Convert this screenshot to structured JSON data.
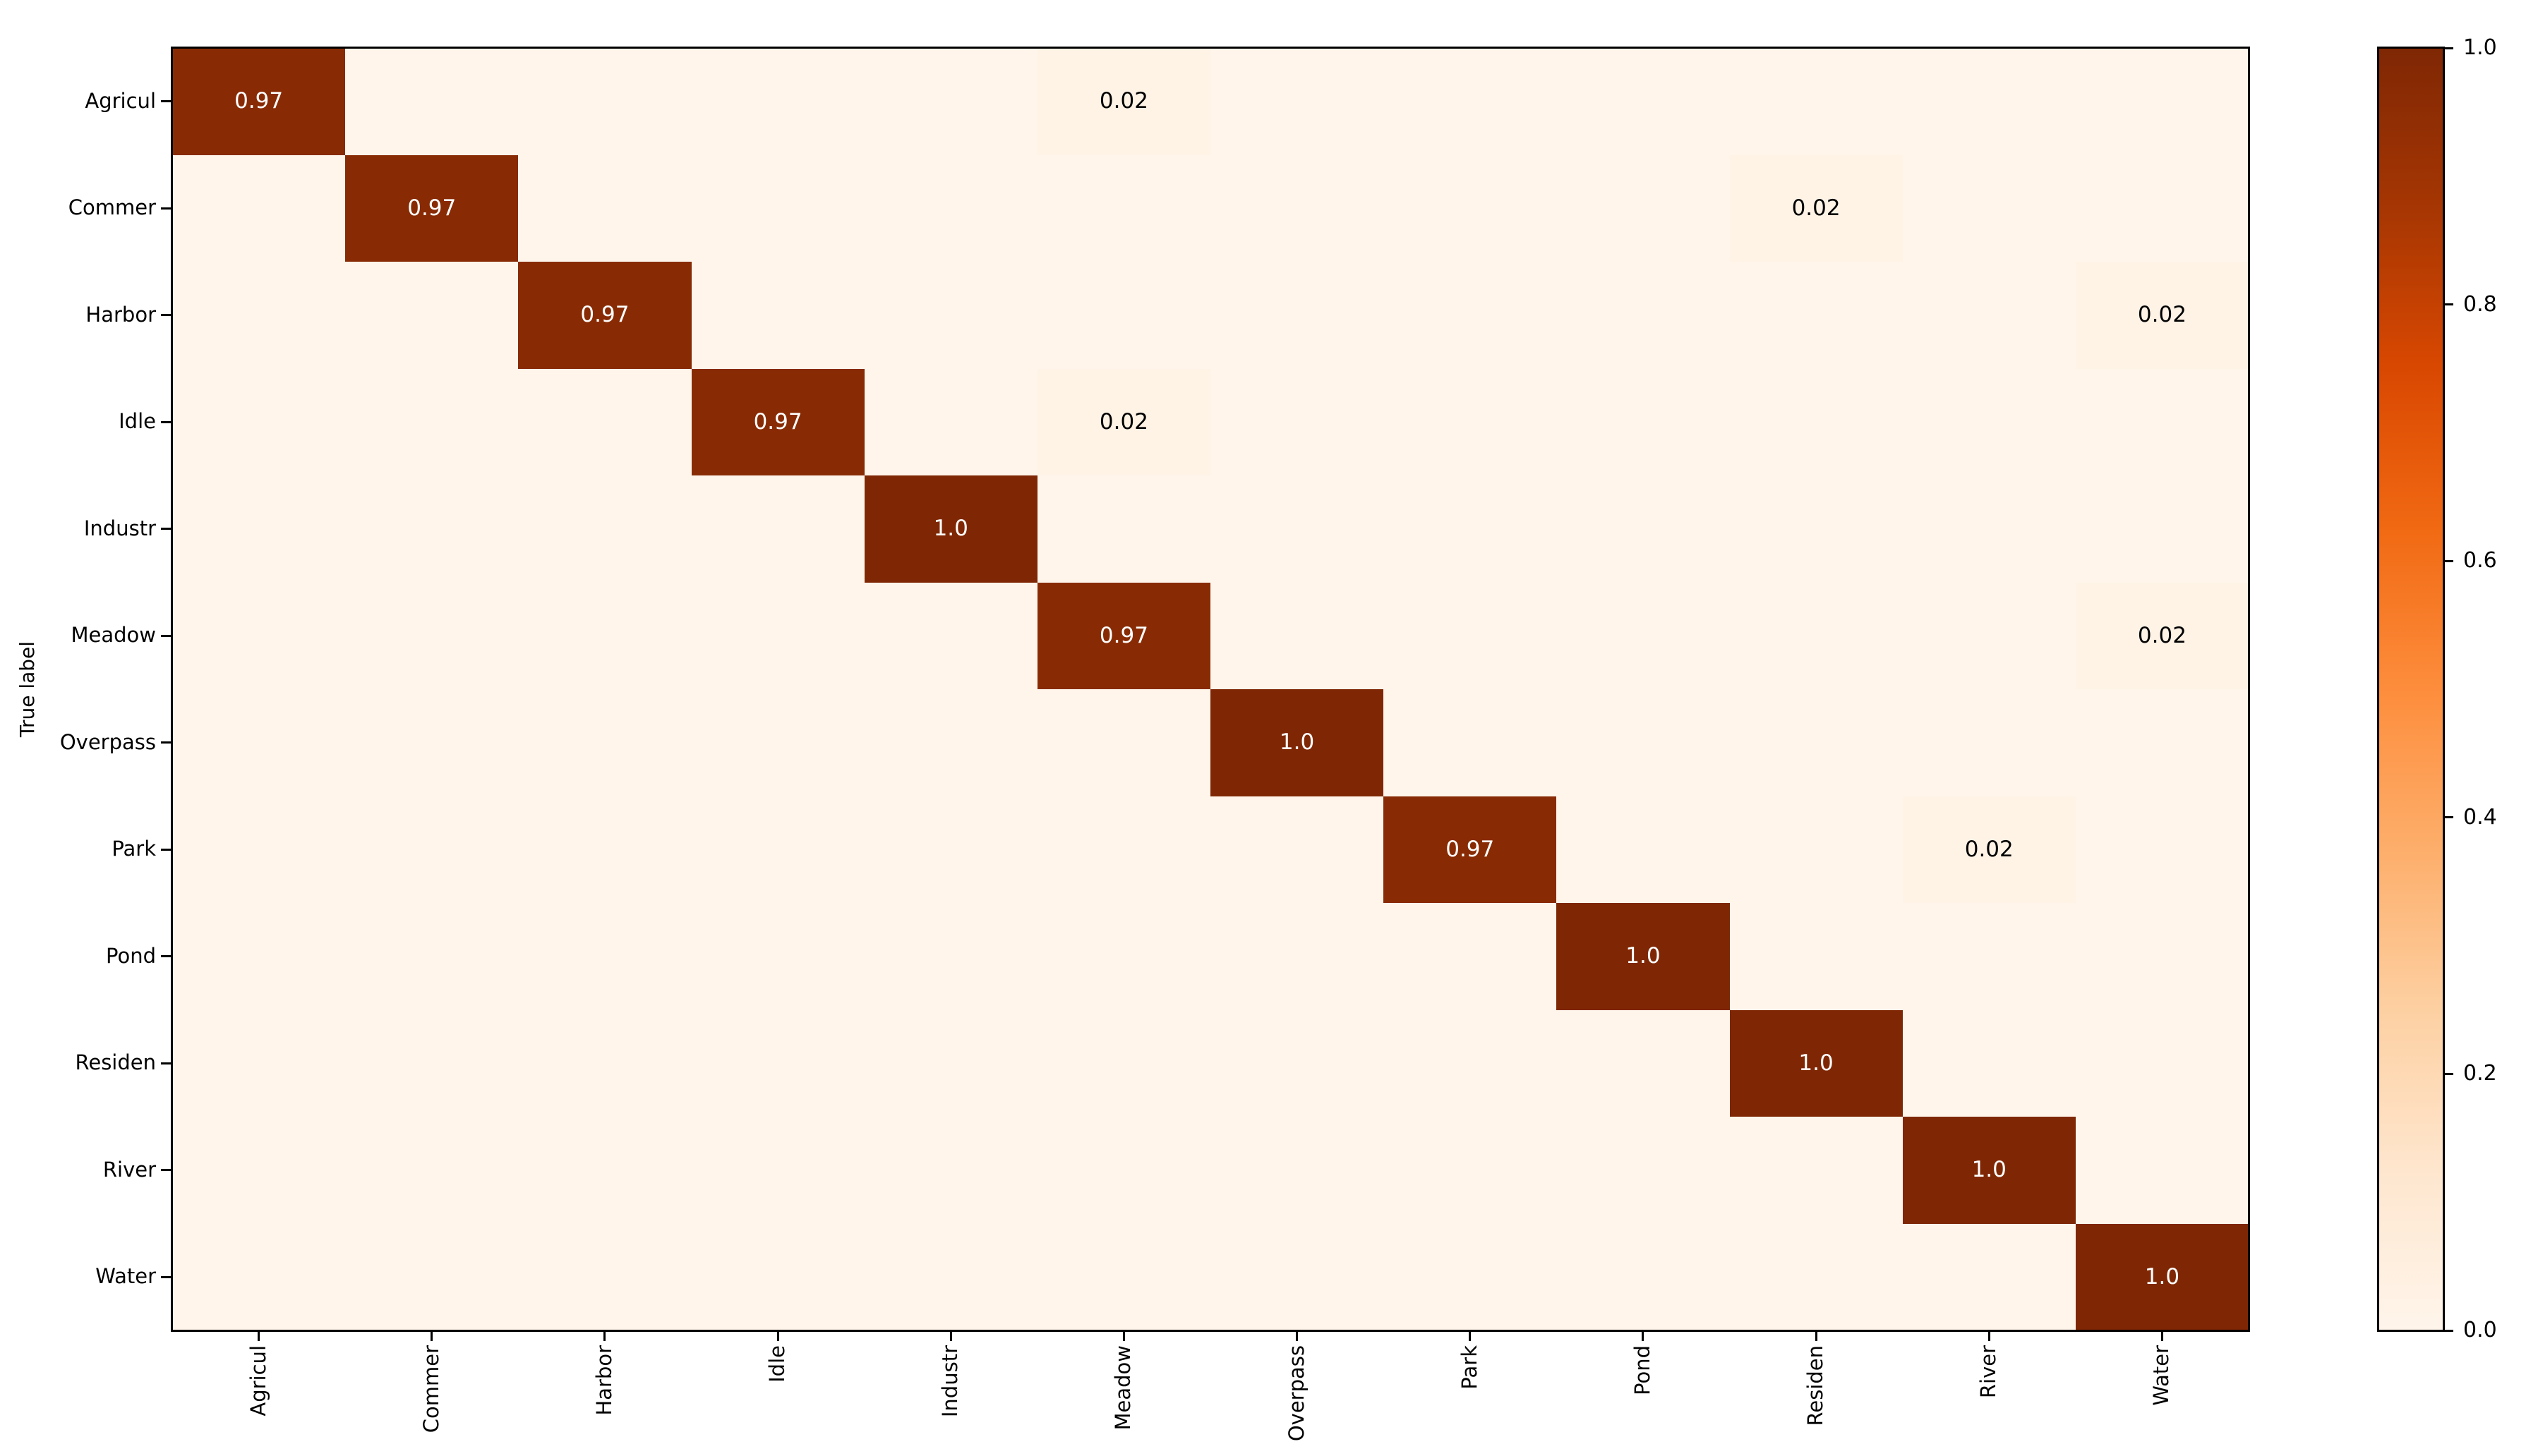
{
  "chart_data": {
    "type": "heatmap",
    "title": "",
    "xlabel": "",
    "ylabel": "True label",
    "x_tick_labels": [
      "Agricul",
      "Commer",
      "Harbor",
      "Idle",
      "Industr",
      "Meadow",
      "Overpass",
      "Park",
      "Pond",
      "Residen",
      "River",
      "Water"
    ],
    "y_tick_labels": [
      "Agricul",
      "Commer",
      "Harbor",
      "Idle",
      "Industr",
      "Meadow",
      "Overpass",
      "Park",
      "Pond",
      "Residen",
      "River",
      "Water"
    ],
    "matrix": [
      [
        0.97,
        0,
        0,
        0,
        0,
        0.02,
        0,
        0,
        0,
        0,
        0,
        0
      ],
      [
        0,
        0.97,
        0,
        0,
        0,
        0,
        0,
        0,
        0,
        0.02,
        0,
        0
      ],
      [
        0,
        0,
        0.97,
        0,
        0,
        0,
        0,
        0,
        0,
        0,
        0,
        0.02
      ],
      [
        0,
        0,
        0,
        0.97,
        0,
        0.02,
        0,
        0,
        0,
        0,
        0,
        0
      ],
      [
        0,
        0,
        0,
        0,
        1.0,
        0,
        0,
        0,
        0,
        0,
        0,
        0
      ],
      [
        0,
        0,
        0,
        0,
        0,
        0.97,
        0,
        0,
        0,
        0,
        0,
        0.02
      ],
      [
        0,
        0,
        0,
        0,
        0,
        0,
        1.0,
        0,
        0,
        0,
        0,
        0
      ],
      [
        0,
        0,
        0,
        0,
        0,
        0,
        0,
        0.97,
        0,
        0,
        0.02,
        0
      ],
      [
        0,
        0,
        0,
        0,
        0,
        0,
        0,
        0,
        1.0,
        0,
        0,
        0
      ],
      [
        0,
        0,
        0,
        0,
        0,
        0,
        0,
        0,
        0,
        1.0,
        0,
        0
      ],
      [
        0,
        0,
        0,
        0,
        0,
        0,
        0,
        0,
        0,
        0,
        1.0,
        0
      ],
      [
        0,
        0,
        0,
        0,
        0,
        0,
        0,
        0,
        0,
        0,
        0,
        1.0
      ]
    ],
    "cell_labels_visible": [
      "0.97",
      "1.0",
      "0.02"
    ],
    "vmin": 0.0,
    "vmax": 1.0,
    "grid": false,
    "legend_position": "right-colorbar",
    "colorbar": {
      "tick_labels": [
        "1.0",
        "0.8",
        "0.6",
        "0.4",
        "0.2",
        "0.0"
      ],
      "tick_values": [
        1.0,
        0.8,
        0.6,
        0.4,
        0.2,
        0.0
      ]
    },
    "colormap": {
      "name": "Oranges",
      "anchors": [
        {
          "pos": 0.0,
          "color": "#fff5eb"
        },
        {
          "pos": 0.125,
          "color": "#fee6ce"
        },
        {
          "pos": 0.25,
          "color": "#fdd0a2"
        },
        {
          "pos": 0.375,
          "color": "#fdae6b"
        },
        {
          "pos": 0.5,
          "color": "#fd8d3c"
        },
        {
          "pos": 0.625,
          "color": "#f16913"
        },
        {
          "pos": 0.75,
          "color": "#d94801"
        },
        {
          "pos": 0.875,
          "color": "#a63603"
        },
        {
          "pos": 1.0,
          "color": "#7f2704"
        }
      ]
    },
    "text_colors": {
      "on_dark": "#ffffff",
      "on_light": "#000000",
      "threshold": 0.5
    },
    "spine_color": "#000000",
    "plot_background": "#fff5eb"
  }
}
